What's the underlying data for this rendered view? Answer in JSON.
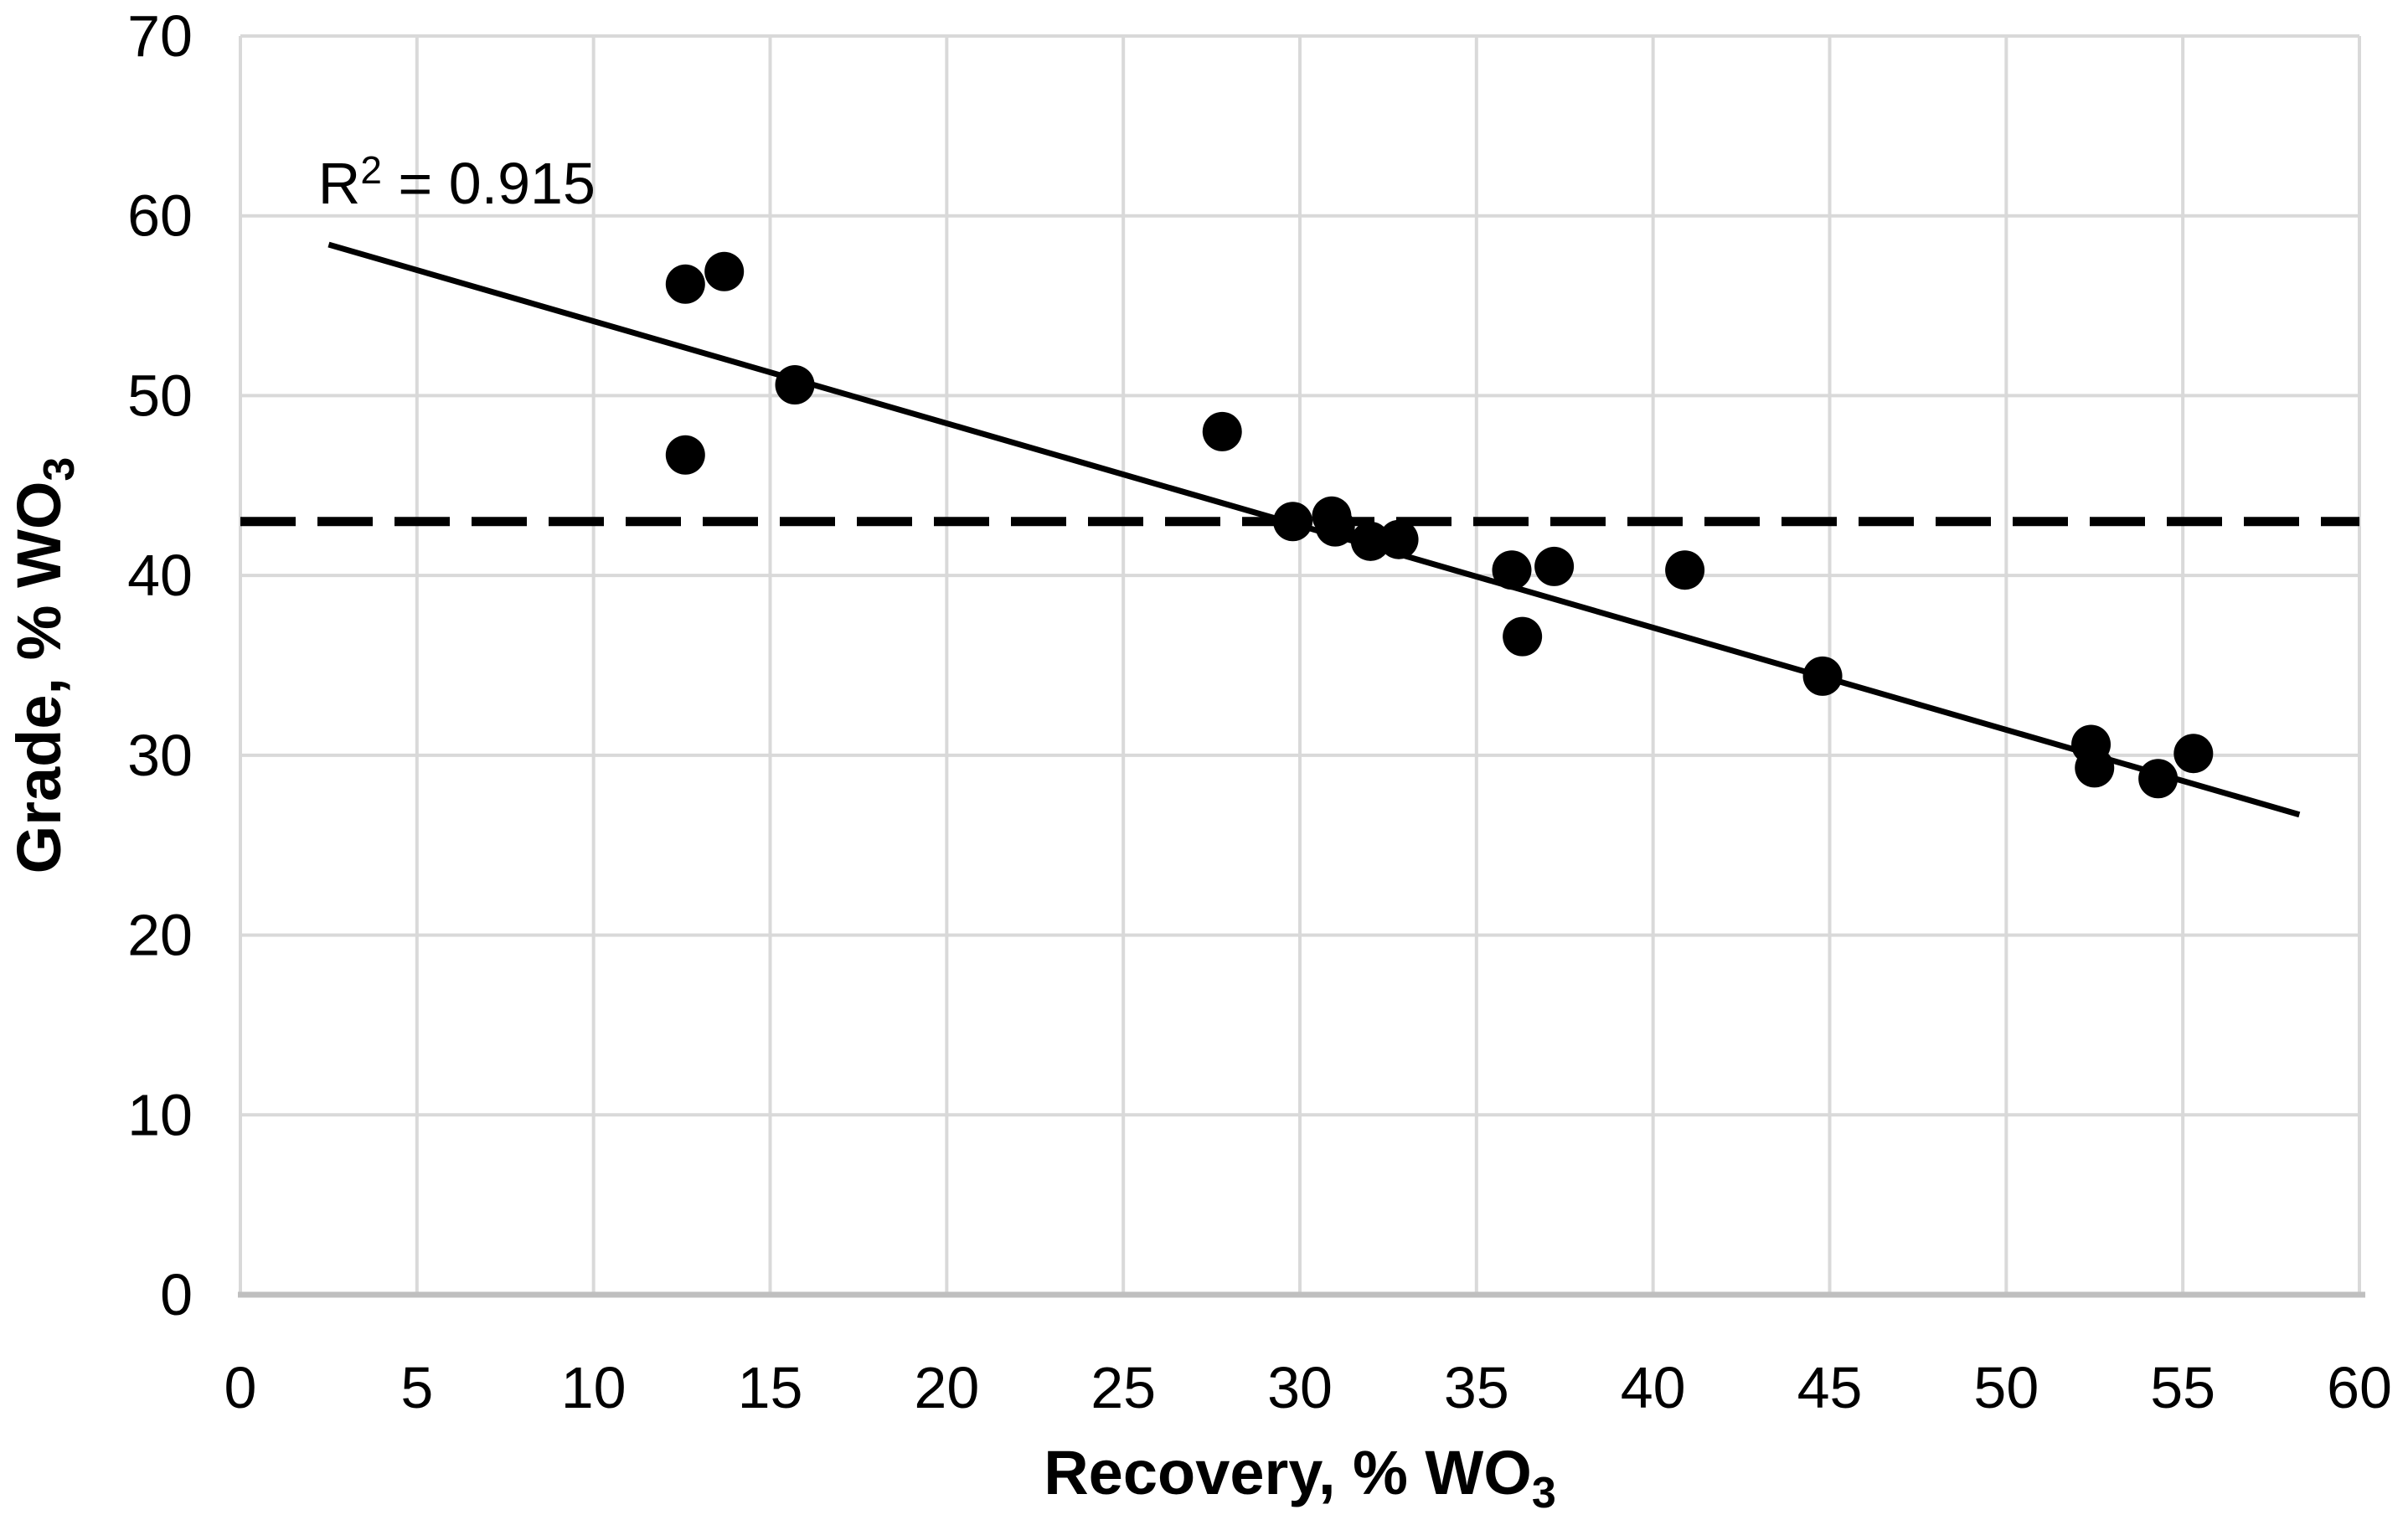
{
  "chart_data": {
    "type": "scatter",
    "title": "",
    "xlabel": "Recovery, % WO",
    "xlabel_subscript": "3",
    "ylabel": "Grade, % WO",
    "ylabel_subscript": "3",
    "xlim": [
      0,
      60
    ],
    "ylim": [
      0,
      70
    ],
    "x_ticks": [
      0,
      5,
      10,
      15,
      20,
      25,
      30,
      35,
      40,
      45,
      50,
      55,
      60
    ],
    "y_ticks": [
      0,
      10,
      20,
      30,
      40,
      50,
      60,
      70
    ],
    "grid": true,
    "legend_position": "none",
    "points": [
      {
        "x": 12.6,
        "y": 56.2
      },
      {
        "x": 13.7,
        "y": 56.9
      },
      {
        "x": 15.7,
        "y": 50.6
      },
      {
        "x": 12.6,
        "y": 46.7
      },
      {
        "x": 27.8,
        "y": 48.0
      },
      {
        "x": 29.8,
        "y": 43.0
      },
      {
        "x": 30.9,
        "y": 43.3
      },
      {
        "x": 31.0,
        "y": 42.7
      },
      {
        "x": 32.0,
        "y": 41.9
      },
      {
        "x": 32.8,
        "y": 42.0
      },
      {
        "x": 36.0,
        "y": 40.3
      },
      {
        "x": 37.2,
        "y": 40.5
      },
      {
        "x": 36.3,
        "y": 36.6
      },
      {
        "x": 40.9,
        "y": 40.3
      },
      {
        "x": 44.8,
        "y": 34.4
      },
      {
        "x": 52.4,
        "y": 30.6
      },
      {
        "x": 52.5,
        "y": 29.3
      },
      {
        "x": 54.3,
        "y": 28.7
      },
      {
        "x": 55.3,
        "y": 30.1
      }
    ],
    "trendline": {
      "type": "linear",
      "x_start": 2.5,
      "y_start": 58.4,
      "x_end": 58.3,
      "y_end": 26.7
    },
    "reference_line": {
      "y": 43.0,
      "style": "dashed",
      "x_start": 0,
      "x_end": 60
    },
    "annotation": {
      "full_text": "R² = 0.915",
      "base": "R",
      "superscript": "2",
      "suffix": " = 0.915",
      "r_squared": 0.915,
      "x": 2.2,
      "y": 61.8
    },
    "colors": {
      "points": "#000000",
      "trendline": "#000000",
      "reference_line": "#000000",
      "gridline": "#d9d9d9",
      "axis_line": "#bfbfbf",
      "text": "#000000",
      "background": "#ffffff"
    }
  }
}
